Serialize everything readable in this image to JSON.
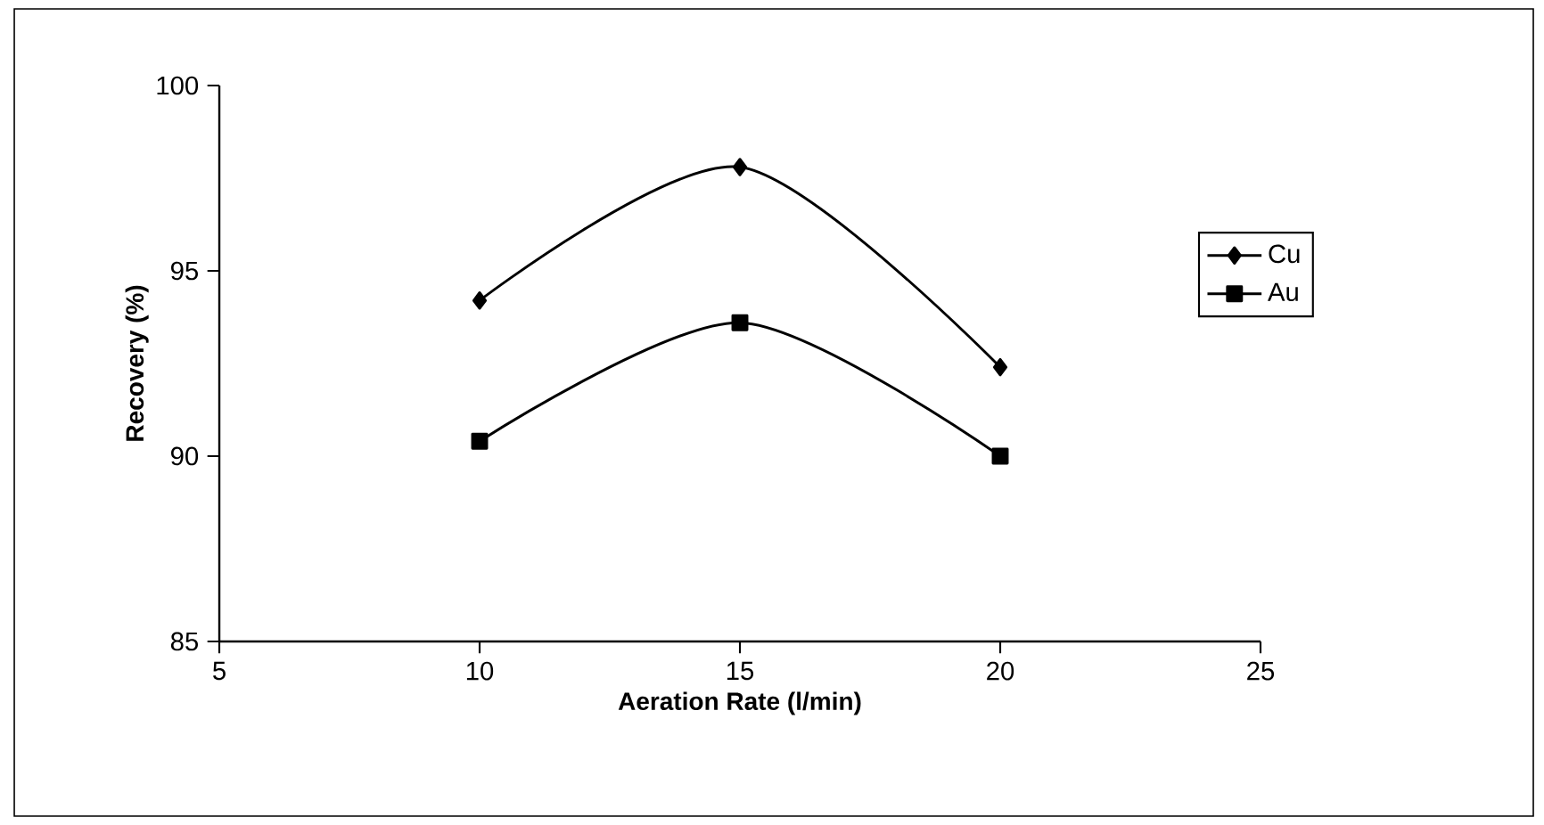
{
  "chart_data": {
    "type": "line",
    "xlabel": "Aeration Rate (l/min)",
    "ylabel": "Recovery (%)",
    "x": [
      10,
      15,
      20
    ],
    "series": [
      {
        "name": "Cu",
        "color": "#000000",
        "marker": "diamond",
        "values": [
          94.2,
          97.8,
          92.4
        ]
      },
      {
        "name": "Au",
        "color": "#000000",
        "marker": "square",
        "values": [
          90.4,
          93.6,
          90.0
        ]
      }
    ],
    "xlim": [
      5,
      25
    ],
    "ylim": [
      85,
      100
    ],
    "xticks": [
      5,
      10,
      15,
      20,
      25
    ],
    "yticks": [
      85,
      90,
      95,
      100
    ],
    "grid": false,
    "legend": "right",
    "line_style": "solid"
  }
}
